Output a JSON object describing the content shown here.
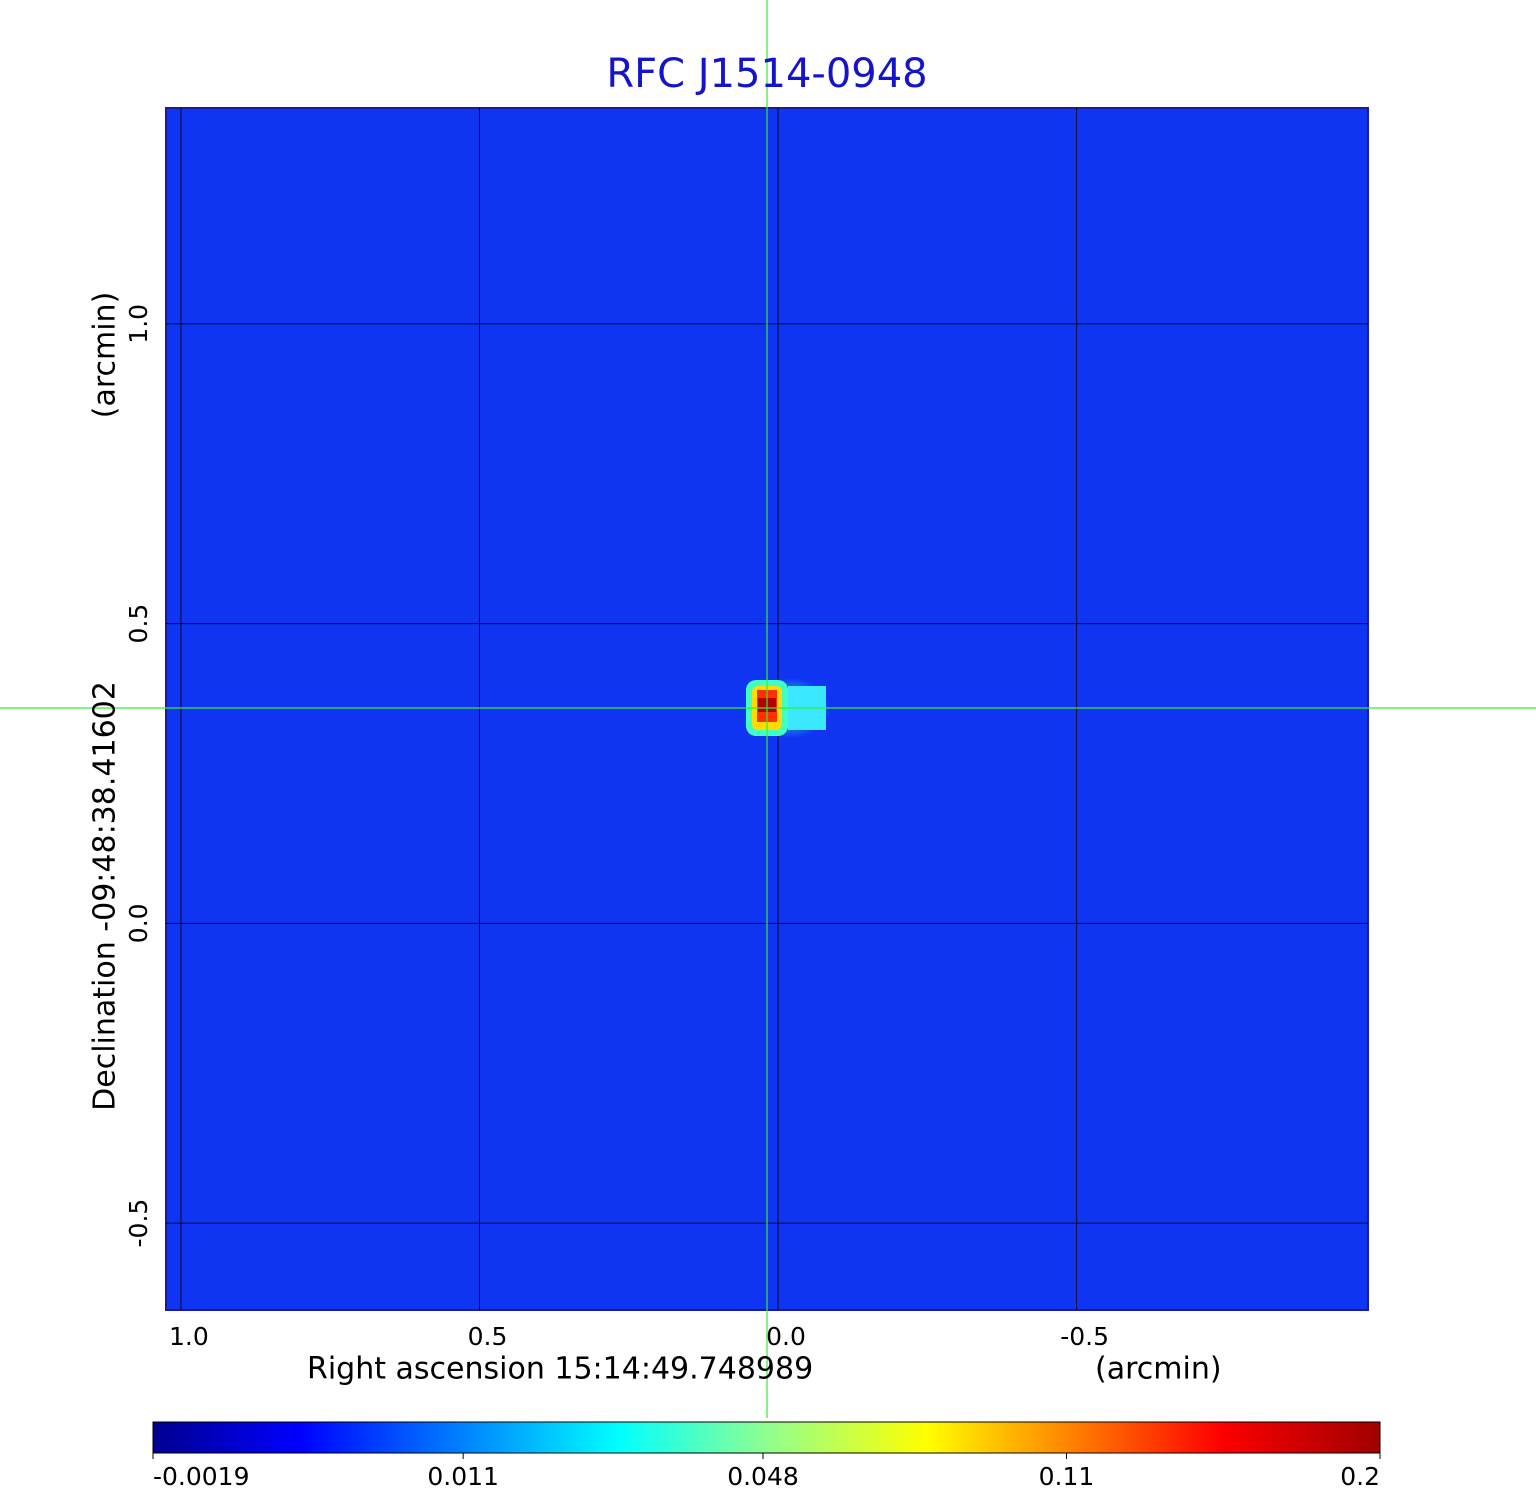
{
  "chart_data": {
    "type": "image",
    "title": "RFC J1514-0948",
    "xlabel": "Right ascension  15:14:49.748989",
    "xunit": "(arcmin)",
    "ylabel": "Declination  -09:48:38.41602",
    "yunit": "(arcmin)",
    "xlim": [
      1.025,
      -0.988
    ],
    "xticks": [
      {
        "value": 1,
        "label": "1.0"
      },
      {
        "value": 0.5,
        "label": "0.5"
      },
      {
        "value": 0,
        "label": "0.0"
      },
      -0.5
    ],
    "ylim": [
      -0.645,
      1.36
    ],
    "yticks": [
      {
        "value": 1,
        "label": "1.0"
      },
      {
        "value": 0.5,
        "label": "0.5"
      },
      {
        "value": 0,
        "label": "0.0"
      },
      -0.5
    ],
    "grid": true,
    "colorbar": {
      "scale": "sqrt",
      "lim": [
        -0.0019,
        0.2
      ],
      "ticks": [
        -0.0019,
        0.011,
        0.048,
        0.11,
        0.2
      ]
    }
  }
}
